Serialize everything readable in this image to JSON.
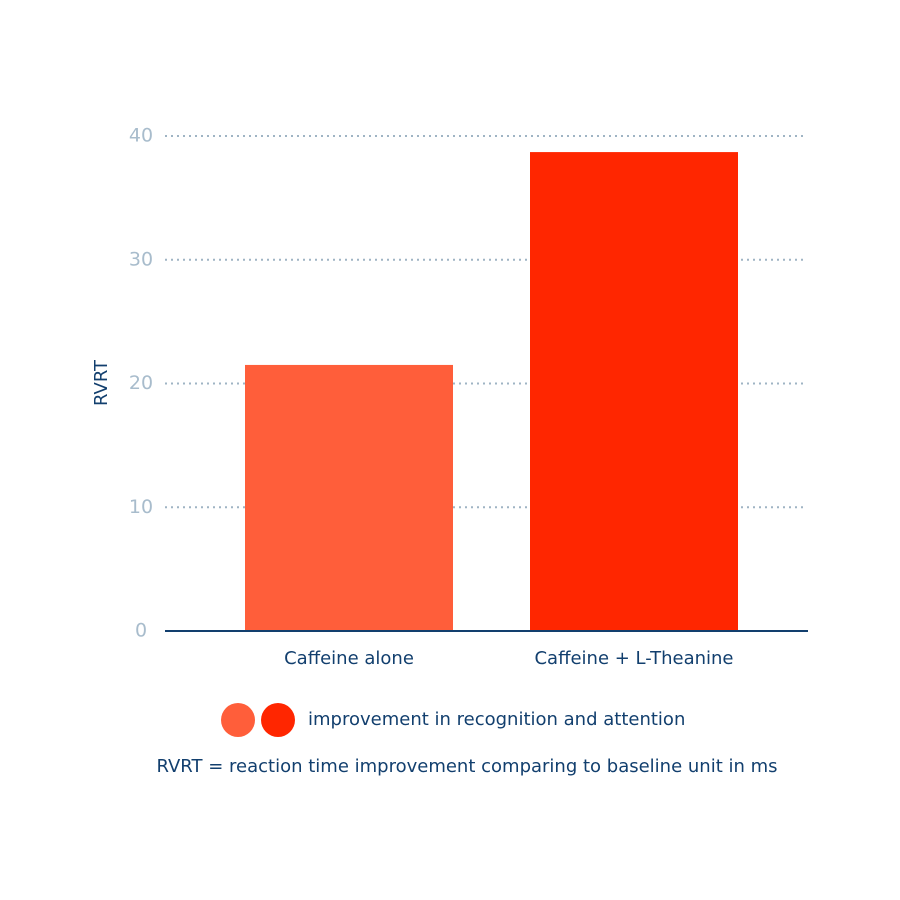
{
  "chart_data": {
    "type": "bar",
    "y_label": "RVRT",
    "categories": [
      "Caffeine alone",
      "Caffeine + L-Theanine"
    ],
    "values": [
      21.5,
      38.7
    ],
    "colors": [
      "#ff5e3a",
      "#ff2600"
    ],
    "ylim": [
      0,
      40
    ],
    "yticks": [
      0,
      10,
      20,
      30,
      40
    ],
    "grid": true,
    "legend_label": "improvement in recognition and attention",
    "note": "RVRT = reaction time improvement comparing to baseline unit in ms"
  }
}
